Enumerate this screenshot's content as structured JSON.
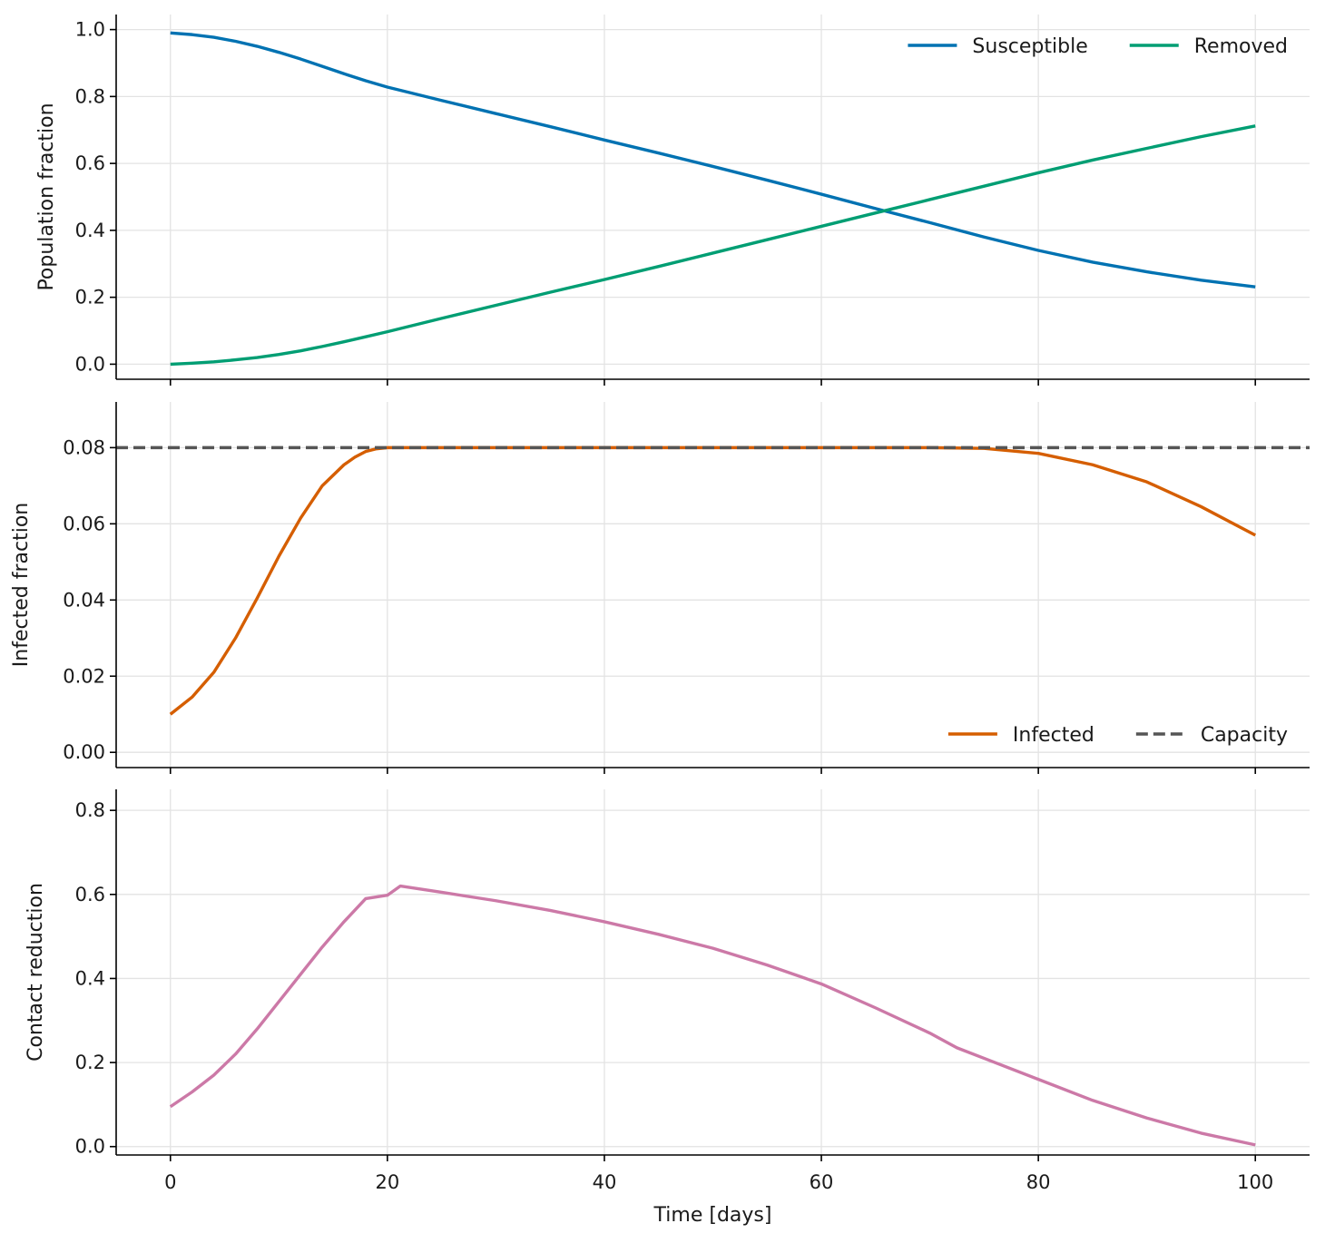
{
  "chart_data": [
    {
      "type": "line",
      "ylabel": "Population fraction",
      "ylim": [
        -0.045,
        1.045
      ],
      "yticks": [
        0.0,
        0.2,
        0.4,
        0.6,
        0.8,
        1.0
      ],
      "ytick_labels": [
        "0.0",
        "0.2",
        "0.4",
        "0.6",
        "0.8",
        "1.0"
      ],
      "xlim": [
        -5,
        105
      ],
      "xticks": [
        0,
        20,
        40,
        60,
        80,
        100
      ],
      "grid": true,
      "legend": {
        "placement": "top-right",
        "columns": 2
      },
      "series": [
        {
          "name": "Susceptible",
          "color": "#0072B2",
          "dash": false,
          "x": [
            0,
            2,
            4,
            6,
            8,
            10,
            12,
            14,
            16,
            18,
            20,
            25,
            30,
            35,
            40,
            45,
            50,
            55,
            60,
            65,
            70,
            75,
            80,
            85,
            90,
            95,
            100
          ],
          "y": [
            0.99,
            0.985,
            0.977,
            0.965,
            0.95,
            0.932,
            0.912,
            0.89,
            0.868,
            0.847,
            0.828,
            0.788,
            0.749,
            0.71,
            0.67,
            0.631,
            0.591,
            0.55,
            0.508,
            0.465,
            0.423,
            0.38,
            0.34,
            0.305,
            0.276,
            0.251,
            0.231
          ]
        },
        {
          "name": "Removed",
          "color": "#009E73",
          "dash": false,
          "x": [
            0,
            2,
            4,
            6,
            8,
            10,
            12,
            14,
            16,
            18,
            20,
            25,
            30,
            35,
            40,
            45,
            50,
            55,
            60,
            65,
            70,
            75,
            80,
            85,
            90,
            95,
            100
          ],
          "y": [
            0.0,
            0.003,
            0.007,
            0.013,
            0.02,
            0.029,
            0.04,
            0.053,
            0.067,
            0.082,
            0.097,
            0.137,
            0.176,
            0.215,
            0.253,
            0.292,
            0.332,
            0.372,
            0.412,
            0.452,
            0.492,
            0.532,
            0.572,
            0.61,
            0.645,
            0.68,
            0.712
          ]
        }
      ]
    },
    {
      "type": "line",
      "ylabel": "Infected fraction",
      "ylim": [
        -0.004,
        0.092
      ],
      "yticks": [
        0.0,
        0.02,
        0.04,
        0.06,
        0.08
      ],
      "ytick_labels": [
        "0.00",
        "0.02",
        "0.04",
        "0.06",
        "0.08"
      ],
      "xlim": [
        -5,
        105
      ],
      "xticks": [
        0,
        20,
        40,
        60,
        80,
        100
      ],
      "grid": true,
      "legend": {
        "placement": "bottom-right",
        "columns": 2
      },
      "series": [
        {
          "name": "Infected",
          "color": "#D55E00",
          "dash": false,
          "x": [
            0,
            2,
            4,
            6,
            8,
            10,
            12,
            14,
            16,
            17,
            18,
            19,
            20,
            21,
            25,
            30,
            40,
            50,
            60,
            70,
            75,
            80,
            85,
            90,
            95,
            100
          ],
          "y": [
            0.01,
            0.0145,
            0.021,
            0.03,
            0.0405,
            0.0515,
            0.0615,
            0.07,
            0.0755,
            0.0775,
            0.079,
            0.0797,
            0.08,
            0.08,
            0.08,
            0.08,
            0.08,
            0.08,
            0.08,
            0.08,
            0.0798,
            0.0785,
            0.0755,
            0.071,
            0.0645,
            0.057
          ]
        },
        {
          "name": "Capacity",
          "color": "#555555",
          "dash": true,
          "x": [
            -5,
            105
          ],
          "y": [
            0.08,
            0.08
          ]
        }
      ]
    },
    {
      "type": "line",
      "ylabel": "Contact reduction",
      "xlabel": "Time [days]",
      "ylim": [
        -0.02,
        0.85
      ],
      "yticks": [
        0.0,
        0.2,
        0.4,
        0.6,
        0.8
      ],
      "ytick_labels": [
        "0.0",
        "0.2",
        "0.4",
        "0.6",
        "0.8"
      ],
      "xlim": [
        -5,
        105
      ],
      "xticks": [
        0,
        20,
        40,
        60,
        80,
        100
      ],
      "xtick_labels": [
        "0",
        "20",
        "40",
        "60",
        "80",
        "100"
      ],
      "grid": true,
      "series": [
        {
          "name": "",
          "color": "#CC79A7",
          "dash": false,
          "x": [
            0,
            2,
            4,
            6,
            8,
            10,
            12,
            14,
            16,
            18,
            20,
            21.2,
            25,
            30,
            35,
            40,
            45,
            50,
            55,
            60,
            65,
            70,
            72.5,
            75,
            80,
            85,
            90,
            95,
            100
          ],
          "y": [
            0.095,
            0.13,
            0.17,
            0.22,
            0.28,
            0.345,
            0.41,
            0.475,
            0.535,
            0.59,
            0.598,
            0.62,
            0.605,
            0.585,
            0.562,
            0.535,
            0.505,
            0.472,
            0.432,
            0.387,
            0.33,
            0.27,
            0.235,
            0.21,
            0.16,
            0.11,
            0.068,
            0.032,
            0.004
          ]
        }
      ]
    }
  ]
}
